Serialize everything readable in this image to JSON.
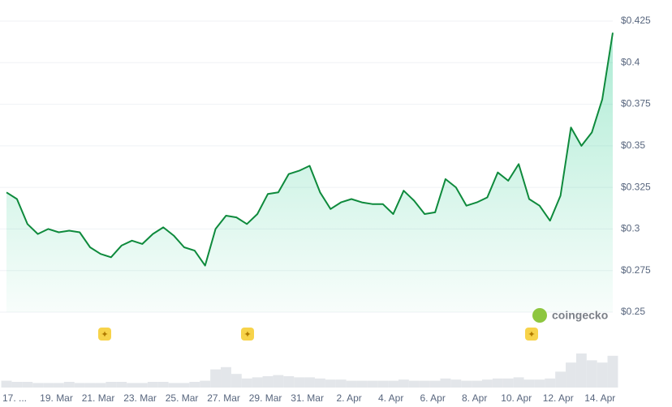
{
  "chart_data": {
    "type": "line",
    "categories": [
      "17. ...",
      null,
      null,
      null,
      "19. Mar",
      null,
      null,
      null,
      "21. Mar",
      null,
      null,
      null,
      "23. Mar",
      null,
      null,
      null,
      "25. Mar",
      null,
      null,
      null,
      "27. Mar",
      null,
      null,
      null,
      "29. Mar",
      null,
      null,
      null,
      "31. Mar",
      null,
      null,
      null,
      "2. Apr",
      null,
      null,
      null,
      "4. Apr",
      null,
      null,
      null,
      "6. Apr",
      null,
      null,
      null,
      "8. Apr",
      null,
      null,
      null,
      "10. Apr",
      null,
      null,
      null,
      "12. Apr",
      null,
      null,
      null,
      "14. Apr",
      null,
      null
    ],
    "series": [
      {
        "color": "#0e8a3c",
        "values": [
          0.322,
          0.318,
          0.303,
          0.297,
          0.3,
          0.298,
          0.299,
          0.298,
          0.289,
          0.285,
          0.283,
          0.29,
          0.293,
          0.291,
          0.297,
          0.301,
          0.296,
          0.289,
          0.287,
          0.278,
          0.3,
          0.308,
          0.307,
          0.303,
          0.309,
          0.321,
          0.322,
          0.333,
          0.335,
          0.338,
          0.322,
          0.312,
          0.316,
          0.318,
          0.316,
          0.315,
          0.315,
          0.309,
          0.323,
          0.317,
          0.309,
          0.31,
          0.33,
          0.325,
          0.314,
          0.316,
          0.319,
          0.334,
          0.329,
          0.339,
          0.318,
          0.314,
          0.305,
          0.32,
          0.361,
          0.35,
          0.358,
          0.378,
          0.418
        ]
      }
    ],
    "volume": [
      6,
      5,
      5,
      4,
      4,
      4,
      5,
      4,
      4,
      4,
      5,
      5,
      4,
      4,
      5,
      5,
      4,
      4,
      5,
      6,
      16,
      18,
      12,
      8,
      9,
      10,
      11,
      10,
      9,
      9,
      8,
      7,
      7,
      6,
      6,
      6,
      6,
      6,
      7,
      6,
      6,
      6,
      8,
      7,
      6,
      6,
      7,
      8,
      8,
      9,
      7,
      7,
      8,
      14,
      22,
      30,
      24,
      22,
      28
    ],
    "ylim": [
      0.25,
      0.425
    ],
    "yticks": [
      {
        "value": 0.25,
        "label": "$0.25"
      },
      {
        "value": 0.275,
        "label": "$0.275"
      },
      {
        "value": 0.3,
        "label": "$0.3"
      },
      {
        "value": 0.325,
        "label": "$0.325"
      },
      {
        "value": 0.35,
        "label": "$0.35"
      },
      {
        "value": 0.375,
        "label": "$0.375"
      },
      {
        "value": 0.4,
        "label": "$0.4"
      },
      {
        "value": 0.425,
        "label": "$0.425"
      }
    ],
    "grid": true,
    "watermark": "coingecko"
  }
}
